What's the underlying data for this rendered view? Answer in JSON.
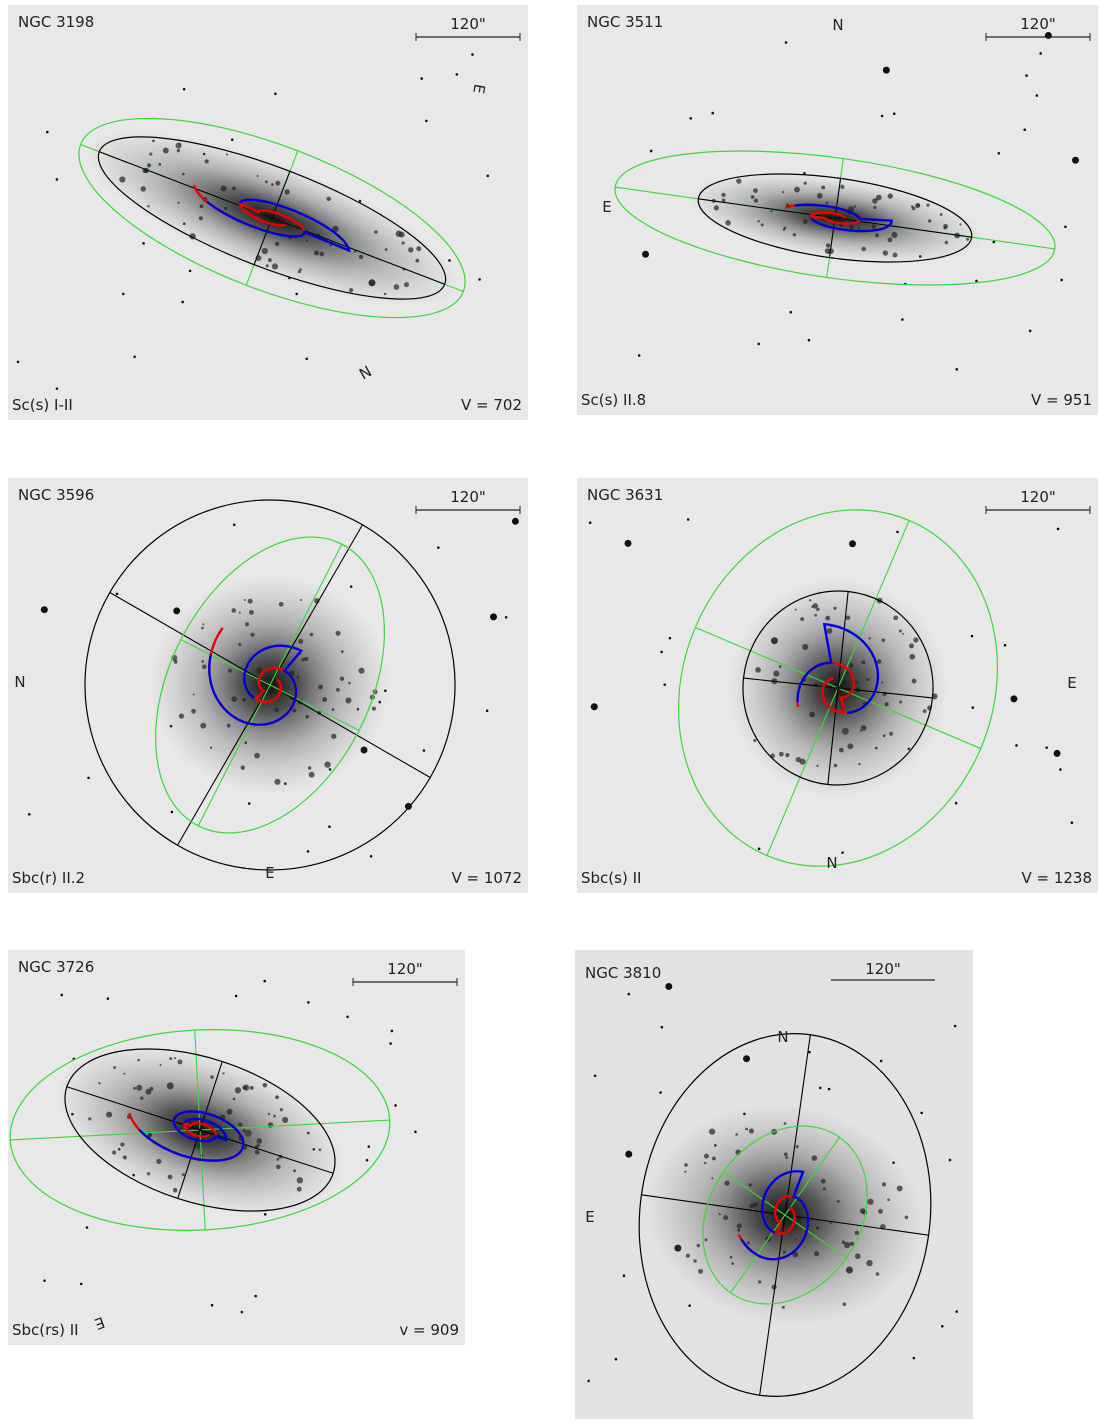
{
  "panels": [
    {
      "name": "NGC 3198",
      "scale": "120\"",
      "type": "Sc(s) I-II",
      "velocity": "V = 702",
      "compass": [
        "E",
        "N"
      ]
    },
    {
      "name": "NGC 3511",
      "scale": "120\"",
      "type": "Sc(s) II.8",
      "velocity": "V = 951",
      "compass": [
        "N",
        "E"
      ]
    },
    {
      "name": "NGC 3596",
      "scale": "120\"",
      "type": "Sbc(r) II.2",
      "velocity": "V = 1072",
      "compass": [
        "N",
        "E"
      ]
    },
    {
      "name": "NGC 3631",
      "scale": "120\"",
      "type": "Sbc(s) II",
      "velocity": "V = 1238",
      "compass": [
        "E",
        "N"
      ]
    },
    {
      "name": "NGC 3726",
      "scale": "120\"",
      "type": "Sbc(rs) II",
      "velocity": "v = 909",
      "compass": [
        "E"
      ]
    },
    {
      "name": "NGC 3810",
      "scale": "120\"",
      "compass": [
        "N",
        "E"
      ]
    }
  ]
}
